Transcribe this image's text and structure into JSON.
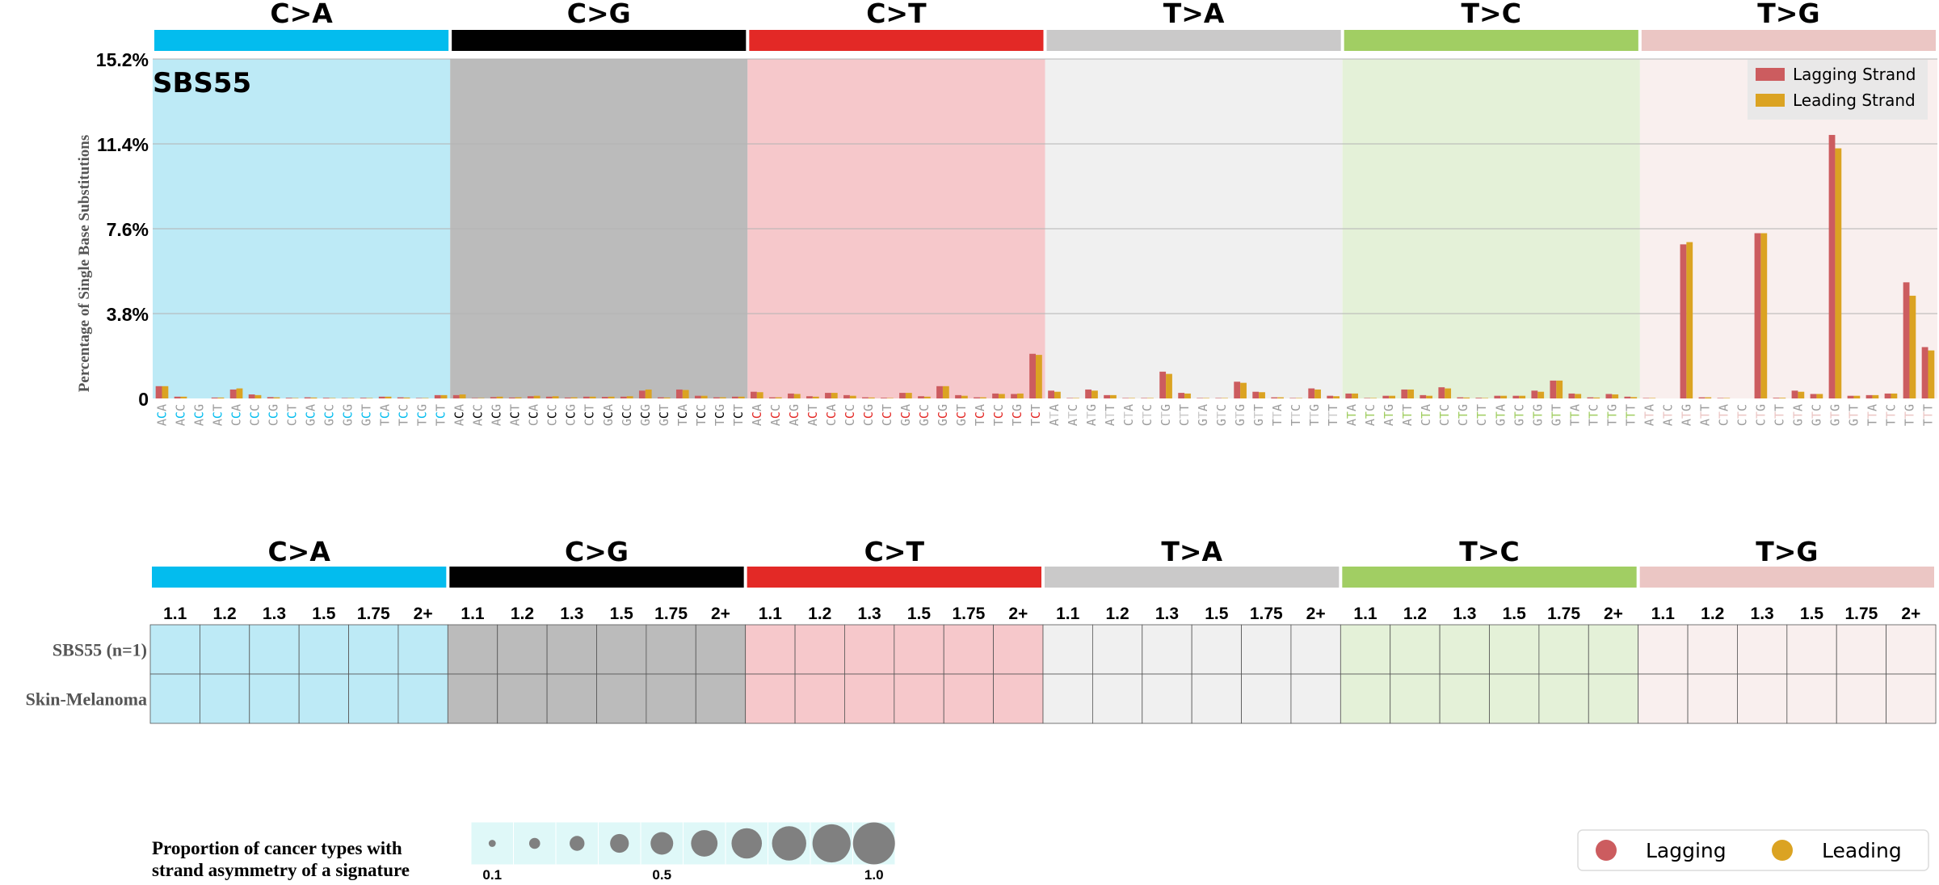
{
  "chart_data": [
    {
      "type": "bar",
      "title": "SBS55",
      "ylabel": "Percentage of Single Base Substitutions",
      "ylim": [
        0,
        15.2
      ],
      "yticks": [
        "0",
        "3.8%",
        "7.6%",
        "11.4%",
        "15.2%"
      ],
      "grid": true,
      "legend_position": "top-right",
      "groups": [
        {
          "label": "C>A",
          "color": "#03bcee",
          "bg": "#bdeaf6",
          "ref": "C"
        },
        {
          "label": "C>G",
          "color": "#010101",
          "bg": "#bbbbbb",
          "ref": "C"
        },
        {
          "label": "C>T",
          "color": "#e32926",
          "bg": "#f6c8cb",
          "ref": "C"
        },
        {
          "label": "T>A",
          "color": "#cac9c9",
          "bg": "#f0f0f0",
          "ref": "T"
        },
        {
          "label": "T>C",
          "color": "#a1ce63",
          "bg": "#e4f1d8",
          "ref": "T"
        },
        {
          "label": "T>G",
          "color": "#ebc6c4",
          "bg": "#f9efee",
          "ref": "T"
        }
      ],
      "contexts": [
        [
          "A",
          "A"
        ],
        [
          "A",
          "C"
        ],
        [
          "A",
          "G"
        ],
        [
          "A",
          "T"
        ],
        [
          "C",
          "A"
        ],
        [
          "C",
          "C"
        ],
        [
          "C",
          "G"
        ],
        [
          "C",
          "T"
        ],
        [
          "G",
          "A"
        ],
        [
          "G",
          "C"
        ],
        [
          "G",
          "G"
        ],
        [
          "G",
          "T"
        ],
        [
          "T",
          "A"
        ],
        [
          "T",
          "C"
        ],
        [
          "T",
          "G"
        ],
        [
          "T",
          "T"
        ]
      ],
      "series": [
        {
          "name": "Lagging Strand",
          "color": "#cc5c5f",
          "values": [
            0.55,
            0.08,
            0.0,
            0.04,
            0.4,
            0.18,
            0.06,
            0.03,
            0.05,
            0.03,
            0.02,
            0.03,
            0.08,
            0.05,
            0.02,
            0.15,
            0.15,
            0.02,
            0.06,
            0.04,
            0.1,
            0.08,
            0.04,
            0.08,
            0.07,
            0.08,
            0.35,
            0.05,
            0.4,
            0.12,
            0.05,
            0.08,
            0.3,
            0.05,
            0.22,
            0.1,
            0.25,
            0.15,
            0.05,
            0.03,
            0.25,
            0.1,
            0.55,
            0.15,
            0.05,
            0.22,
            0.2,
            2.0,
            0.35,
            0.02,
            0.4,
            0.15,
            0.02,
            0.02,
            1.2,
            0.25,
            0.02,
            0.02,
            0.75,
            0.3,
            0.05,
            0.02,
            0.45,
            0.12,
            0.22,
            0.02,
            0.12,
            0.4,
            0.15,
            0.5,
            0.05,
            0.03,
            0.12,
            0.12,
            0.35,
            0.8,
            0.22,
            0.05,
            0.2,
            0.08,
            0.02,
            0.0,
            6.9,
            0.05,
            0.02,
            0.0,
            7.4,
            0.03,
            0.35,
            0.2,
            11.8,
            0.12,
            0.15,
            0.22,
            5.2,
            2.3
          ]
        },
        {
          "name": "Leading Strand",
          "color": "#dba322",
          "values": [
            0.55,
            0.08,
            0.0,
            0.04,
            0.45,
            0.15,
            0.05,
            0.02,
            0.04,
            0.02,
            0.02,
            0.02,
            0.08,
            0.04,
            0.02,
            0.15,
            0.18,
            0.02,
            0.08,
            0.05,
            0.12,
            0.1,
            0.05,
            0.08,
            0.08,
            0.1,
            0.4,
            0.04,
            0.38,
            0.12,
            0.05,
            0.08,
            0.28,
            0.05,
            0.2,
            0.08,
            0.25,
            0.12,
            0.04,
            0.02,
            0.25,
            0.08,
            0.55,
            0.12,
            0.05,
            0.2,
            0.22,
            1.95,
            0.3,
            0.02,
            0.35,
            0.15,
            0.02,
            0.02,
            1.1,
            0.22,
            0.02,
            0.02,
            0.7,
            0.28,
            0.05,
            0.02,
            0.4,
            0.1,
            0.22,
            0.02,
            0.12,
            0.4,
            0.12,
            0.45,
            0.04,
            0.02,
            0.12,
            0.12,
            0.3,
            0.8,
            0.2,
            0.04,
            0.18,
            0.06,
            0.02,
            0.0,
            7.0,
            0.05,
            0.02,
            0.0,
            7.4,
            0.03,
            0.3,
            0.2,
            11.2,
            0.12,
            0.15,
            0.22,
            4.6,
            2.15
          ]
        }
      ]
    },
    {
      "type": "table",
      "groups": [
        "C>A",
        "C>G",
        "C>T",
        "T>A",
        "T>C",
        "T>G"
      ],
      "columns": [
        "1.1",
        "1.2",
        "1.3",
        "1.5",
        "1.75",
        "2+"
      ],
      "rows": [
        "SBS55 (n=1)",
        "Skin-Melanoma"
      ],
      "cells": []
    },
    {
      "type": "scatter",
      "title": "Proportion of cancer types with strand asymmetry of a signature",
      "title_lines": [
        "Proportion of cancer types with",
        "strand asymmetry of a signature"
      ],
      "x": [
        0.1,
        0.2,
        0.3,
        0.4,
        0.5,
        0.6,
        0.7,
        0.8,
        0.9,
        1.0
      ],
      "tick_labels": [
        {
          "x": 0.1,
          "label": "0.1"
        },
        {
          "x": 0.5,
          "label": "0.5"
        },
        {
          "x": 1.0,
          "label": "1.0"
        }
      ],
      "marker_color": "#808080",
      "cell_color": "#dff8f8"
    },
    {
      "type": "legend",
      "entries": [
        {
          "label": "Lagging",
          "color": "#cc5c5f"
        },
        {
          "label": "Leading",
          "color": "#dba322"
        }
      ]
    }
  ]
}
